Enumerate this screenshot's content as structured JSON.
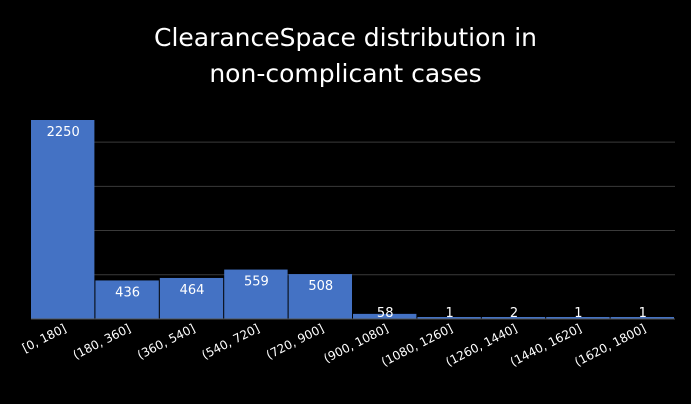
{
  "chart_data": {
    "type": "bar",
    "title_lines": [
      "ClearanceSpace distribution in",
      "non-complicant cases"
    ],
    "categories": [
      "[0, 180]",
      "(180, 360]",
      "(360, 540]",
      "(540, 720]",
      "(720, 900]",
      "(900, 1080]",
      "(1080, 1260]",
      "(1260, 1440]",
      "(1440, 1620]",
      "(1620, 1800]"
    ],
    "values": [
      2250,
      436,
      464,
      559,
      508,
      58,
      1,
      2,
      1,
      1
    ],
    "data_labels": [
      "2250",
      "436",
      "464",
      "559",
      "508",
      "58",
      "1",
      "2",
      "1",
      "1"
    ],
    "xlabel": "",
    "ylabel": "",
    "ylim": [
      0,
      2250
    ],
    "y_gridline_step": 500,
    "grid": true,
    "legend": "none",
    "bar_color": "#4472C4",
    "grid_color": "#3a3a3a",
    "text_color": "#FFFFFF"
  }
}
